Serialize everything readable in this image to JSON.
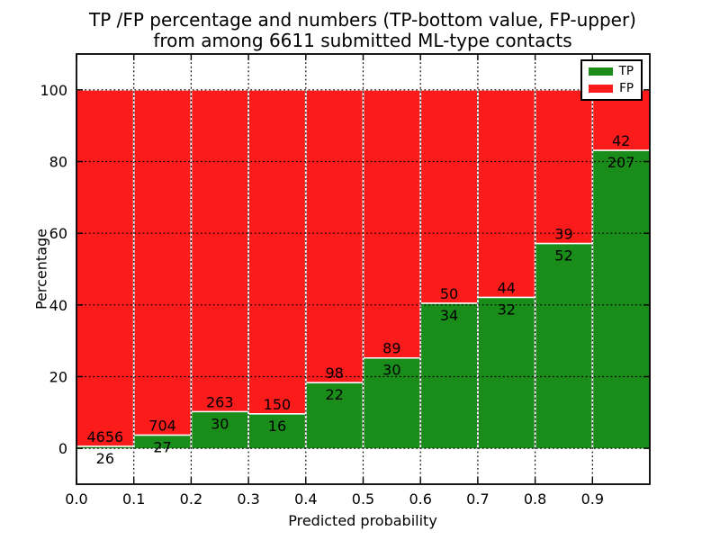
{
  "figure": {
    "title_line1": "TP /FP percentage and numbers (TP-bottom value, FP-upper)",
    "title_line2": "from among 6611 submitted ML-type contacts"
  },
  "chart_data": {
    "type": "bar",
    "variant": "stacked-100-percent-histogram",
    "title": "TP /FP percentage and numbers (TP-bottom value, FP-upper)\nfrom among 6611 submitted ML-type contacts",
    "xlabel": "Predicted probability",
    "ylabel": "Percentage",
    "total_contacts": 6611,
    "bin_edges": [
      0.0,
      0.1,
      0.2,
      0.3,
      0.4,
      0.5,
      0.6,
      0.7,
      0.8,
      0.9,
      1.0
    ],
    "series": [
      {
        "name": "TP",
        "color": "#1a8c1a",
        "counts": [
          26,
          27,
          30,
          16,
          22,
          30,
          34,
          32,
          52,
          207
        ]
      },
      {
        "name": "FP",
        "color": "#fc1b1b",
        "counts": [
          4656,
          704,
          263,
          150,
          98,
          89,
          50,
          44,
          39,
          42
        ]
      }
    ],
    "tp_percent_per_bin": [
      0.56,
      3.69,
      10.24,
      9.64,
      18.33,
      25.21,
      40.48,
      42.11,
      57.14,
      83.13
    ],
    "xticks": [
      "0.0",
      "0.1",
      "0.2",
      "0.3",
      "0.4",
      "0.5",
      "0.6",
      "0.7",
      "0.8",
      "0.9"
    ],
    "yticks": [
      "0",
      "20",
      "40",
      "60",
      "80",
      "100"
    ],
    "xlim": [
      0.0,
      1.0
    ],
    "ylim": [
      -10,
      110
    ],
    "grid": "dotted",
    "legend": {
      "position": "upper right"
    }
  }
}
